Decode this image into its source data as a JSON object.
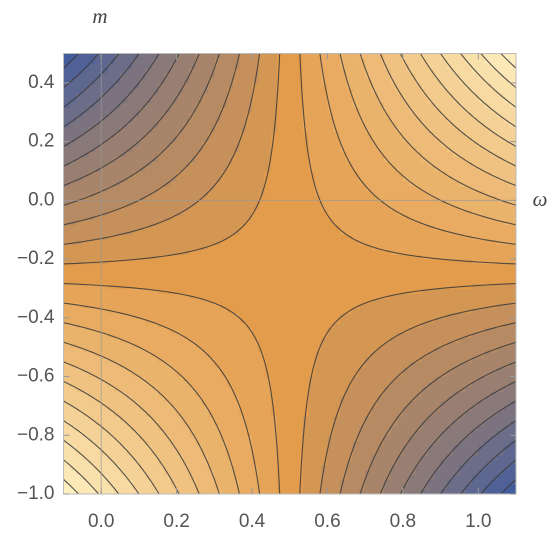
{
  "chart_data": {
    "type": "contour",
    "x_label": "ω",
    "y_label": "m",
    "x": [
      -0.1,
      0,
      0.1,
      0.2,
      0.3,
      0.4,
      0.5,
      0.6,
      0.7,
      0.8,
      0.9,
      1,
      1.1
    ],
    "y": [
      -1,
      -0.9,
      -0.8,
      -0.7,
      -0.6,
      -0.5,
      -0.4,
      -0.3,
      -0.2,
      -0.1,
      0,
      0.1,
      0.2,
      0.3,
      0.4,
      0.5
    ],
    "z": [
      [
        0.45,
        0.375,
        0.3,
        0.225,
        0.15,
        0.075,
        0,
        -0.075,
        -0.15,
        -0.225,
        -0.3,
        -0.375,
        -0.45
      ],
      [
        0.39,
        0.325,
        0.26,
        0.195,
        0.13,
        0.065,
        0,
        -0.065,
        -0.13,
        -0.195,
        -0.26,
        -0.325,
        -0.39
      ],
      [
        0.33,
        0.275,
        0.22,
        0.165,
        0.11,
        0.055,
        0,
        -0.055,
        -0.11,
        -0.165,
        -0.22,
        -0.275,
        -0.33
      ],
      [
        0.27,
        0.225,
        0.18,
        0.135,
        0.09,
        0.045,
        0,
        -0.045,
        -0.09,
        -0.135,
        -0.18,
        -0.225,
        -0.27
      ],
      [
        0.21,
        0.175,
        0.14,
        0.105,
        0.07,
        0.035,
        0,
        -0.035,
        -0.07,
        -0.105,
        -0.14,
        -0.175,
        -0.21
      ],
      [
        0.15,
        0.125,
        0.1,
        0.075,
        0.05,
        0.025,
        0,
        -0.025,
        -0.05,
        -0.075,
        -0.1,
        -0.125,
        -0.15
      ],
      [
        0.09,
        0.075,
        0.06,
        0.045,
        0.03,
        0.015,
        0,
        -0.015,
        -0.03,
        -0.045,
        -0.06,
        -0.075,
        -0.09
      ],
      [
        0.03,
        0.025,
        0.02,
        0.015,
        0.01,
        0.005,
        0,
        -0.005,
        -0.01,
        -0.015,
        -0.02,
        -0.025,
        -0.03
      ],
      [
        -0.03,
        -0.025,
        -0.02,
        -0.015,
        -0.01,
        -0.005,
        0,
        0.005,
        0.01,
        0.015,
        0.02,
        0.025,
        0.03
      ],
      [
        -0.09,
        -0.075,
        -0.06,
        -0.045,
        -0.03,
        -0.015,
        0,
        0.015,
        0.03,
        0.045,
        0.06,
        0.075,
        0.09
      ],
      [
        -0.15,
        -0.125,
        -0.1,
        -0.075,
        -0.05,
        -0.025,
        0,
        0.025,
        0.05,
        0.075,
        0.1,
        0.125,
        0.15
      ],
      [
        -0.21,
        -0.175,
        -0.14,
        -0.105,
        -0.07,
        -0.035,
        0,
        0.035,
        0.07,
        0.105,
        0.14,
        0.175,
        0.21
      ],
      [
        -0.27,
        -0.225,
        -0.18,
        -0.135,
        -0.09,
        -0.045,
        0,
        0.045,
        0.09,
        0.135,
        0.18,
        0.225,
        0.27
      ],
      [
        -0.33,
        -0.275,
        -0.22,
        -0.165,
        -0.11,
        -0.055,
        0,
        0.055,
        0.11,
        0.165,
        0.22,
        0.275,
        0.33
      ],
      [
        -0.39,
        -0.325,
        -0.26,
        -0.195,
        -0.13,
        -0.065,
        0,
        0.065,
        0.13,
        0.195,
        0.26,
        0.325,
        0.39
      ],
      [
        -0.45,
        -0.375,
        -0.3,
        -0.225,
        -0.15,
        -0.075,
        0,
        0.075,
        0.15,
        0.225,
        0.3,
        0.375,
        0.45
      ]
    ],
    "levels": [
      -0.42,
      -0.38,
      -0.34,
      -0.3,
      -0.26,
      -0.22,
      -0.18,
      -0.14,
      -0.1,
      -0.06,
      -0.02,
      0.02,
      0.06,
      0.1,
      0.14,
      0.18,
      0.22,
      0.26,
      0.3,
      0.34,
      0.38,
      0.42
    ],
    "colors": [
      "#3c5aa0",
      "#e39c4c",
      "#fff2c4"
    ],
    "xlim": [
      -0.1,
      1.1
    ],
    "ylim": [
      -1,
      0.5
    ],
    "xticks": [
      {
        "value": 0,
        "label": "0.0"
      },
      0.2,
      0.4,
      0.6,
      0.8,
      {
        "value": 1,
        "label": "1.0"
      }
    ],
    "yticks": [
      {
        "value": -1,
        "label": "−1.0"
      },
      {
        "value": -0.8,
        "label": "−0.8"
      },
      {
        "value": -0.6,
        "label": "−0.6"
      },
      {
        "value": -0.4,
        "label": "−0.4"
      },
      {
        "value": -0.2,
        "label": "−0.2"
      },
      {
        "value": 0,
        "label": "0.0"
      },
      0.2,
      0.4
    ]
  }
}
